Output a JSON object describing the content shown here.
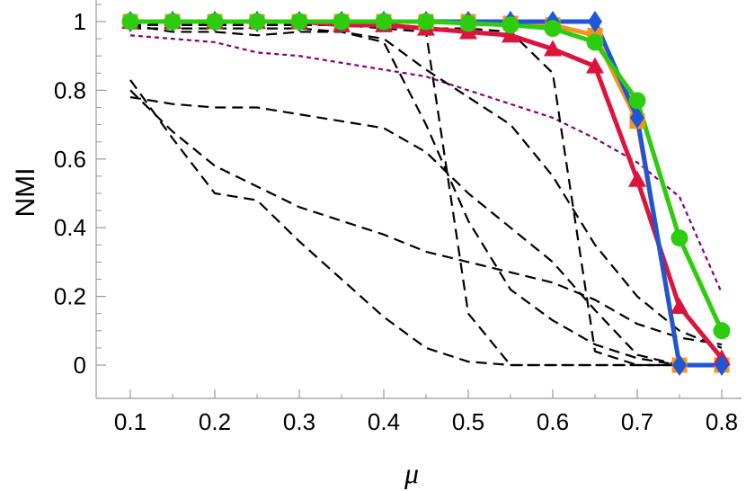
{
  "chart_data": {
    "type": "line",
    "xlabel": "μ",
    "ylabel": "NMI",
    "xlim": [
      0.1,
      0.8
    ],
    "ylim": [
      0,
      1
    ],
    "x_ticks": [
      "0.1",
      "0.2",
      "0.3",
      "0.4",
      "0.5",
      "0.6",
      "0.7",
      "0.8"
    ],
    "y_ticks": [
      "0",
      "0.2",
      "0.4",
      "0.6",
      "0.8",
      "1"
    ],
    "grid": false,
    "legend": "none",
    "x": [
      0.1,
      0.15,
      0.2,
      0.25,
      0.3,
      0.35,
      0.4,
      0.45,
      0.5,
      0.55,
      0.6,
      0.65,
      0.7,
      0.75,
      0.8
    ],
    "series": [
      {
        "style": "dashed",
        "color": "#800080",
        "values": [
          0.96,
          0.95,
          0.94,
          0.91,
          0.9,
          0.88,
          0.86,
          0.84,
          0.8,
          0.76,
          0.72,
          0.66,
          0.59,
          0.49,
          0.21
        ]
      },
      {
        "style": "dashed",
        "color": "#000000",
        "values": [
          0.98,
          0.98,
          0.98,
          0.98,
          0.98,
          0.97,
          0.94,
          0.7,
          0.42,
          0.22,
          0.13,
          0.06,
          0.02,
          0.0,
          0.0
        ]
      },
      {
        "style": "dashed",
        "color": "#000000",
        "values": [
          0.99,
          0.99,
          0.99,
          0.99,
          0.99,
          0.99,
          0.99,
          0.98,
          0.98,
          0.97,
          0.85,
          0.04,
          0.0,
          0.0,
          0.0
        ]
      },
      {
        "style": "dashed",
        "color": "#000000",
        "values": [
          0.99,
          0.97,
          0.97,
          0.96,
          0.97,
          0.97,
          0.95,
          0.86,
          0.78,
          0.7,
          0.55,
          0.35,
          0.2,
          0.1,
          0.05
        ]
      },
      {
        "style": "dashed",
        "color": "#000000",
        "values": [
          1.0,
          0.99,
          0.99,
          0.99,
          0.99,
          0.99,
          0.98,
          0.97,
          0.15,
          0.0,
          0.0,
          0.0,
          0.0,
          0.0,
          0.0
        ]
      },
      {
        "style": "dashed",
        "color": "#000000",
        "values": [
          0.78,
          0.76,
          0.75,
          0.75,
          0.73,
          0.71,
          0.69,
          0.62,
          0.5,
          0.4,
          0.3,
          0.16,
          0.03,
          0.0,
          0.0
        ]
      },
      {
        "style": "dashed",
        "color": "#000000",
        "values": [
          0.8,
          0.68,
          0.58,
          0.52,
          0.46,
          0.42,
          0.38,
          0.33,
          0.3,
          0.27,
          0.24,
          0.19,
          0.12,
          0.08,
          0.06
        ]
      },
      {
        "style": "dashed",
        "color": "#000000",
        "values": [
          0.83,
          0.66,
          0.5,
          0.48,
          0.36,
          0.25,
          0.14,
          0.05,
          0.01,
          0.0,
          0.0,
          0.0,
          0.0,
          0.0,
          0.0
        ]
      },
      {
        "style": "solid",
        "color": "#f7941d",
        "marker": "square",
        "values": [
          1.0,
          1.0,
          1.0,
          1.0,
          1.0,
          1.0,
          1.0,
          1.0,
          1.0,
          0.995,
          0.99,
          0.96,
          0.71,
          0.0,
          0.0
        ]
      },
      {
        "style": "solid",
        "color": "#dc143c",
        "marker": "triangle",
        "values": [
          1.0,
          1.0,
          1.0,
          1.0,
          1.0,
          0.99,
          0.99,
          0.98,
          0.97,
          0.96,
          0.92,
          0.87,
          0.54,
          0.17,
          0.02
        ]
      },
      {
        "style": "solid",
        "color": "#1f56d6",
        "marker": "diamond",
        "values": [
          1.0,
          1.0,
          1.0,
          1.0,
          1.0,
          1.0,
          1.0,
          1.0,
          1.0,
          1.0,
          1.0,
          1.0,
          0.72,
          0.0,
          0.0
        ]
      },
      {
        "style": "solid",
        "color": "#2ecc0e",
        "marker": "circle",
        "values": [
          1.0,
          1.0,
          1.0,
          1.0,
          1.0,
          1.0,
          1.0,
          1.0,
          0.995,
          0.99,
          0.98,
          0.94,
          0.77,
          0.37,
          0.1
        ]
      }
    ]
  }
}
